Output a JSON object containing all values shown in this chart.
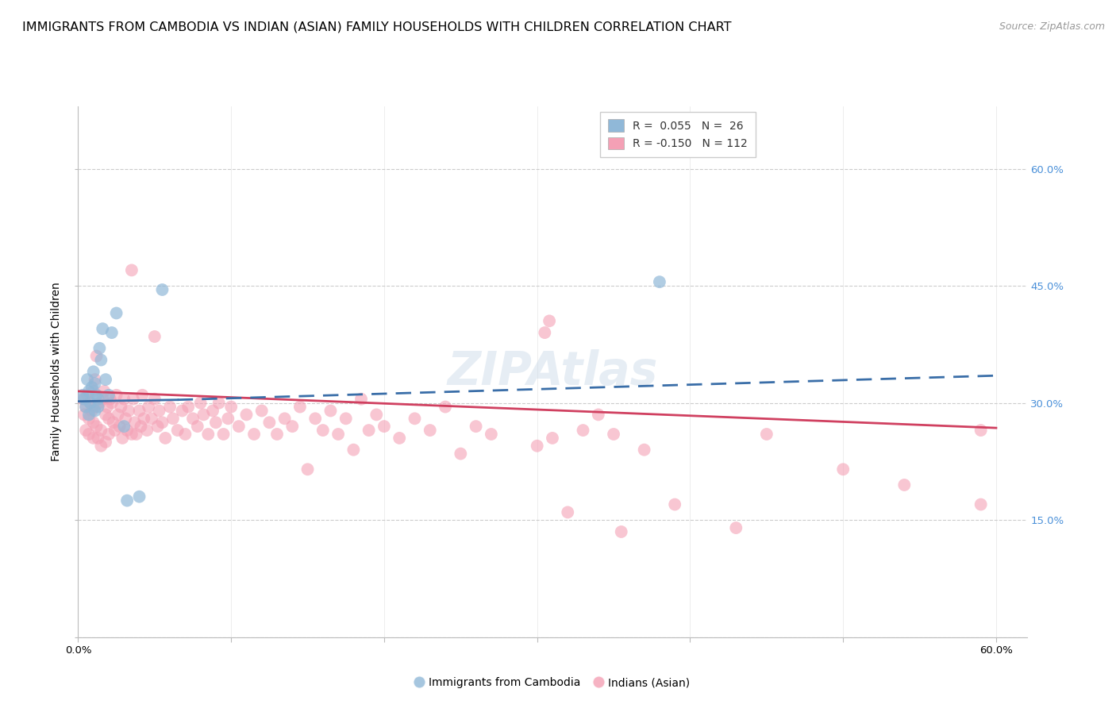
{
  "title": "IMMIGRANTS FROM CAMBODIA VS INDIAN (ASIAN) FAMILY HOUSEHOLDS WITH CHILDREN CORRELATION CHART",
  "source": "Source: ZipAtlas.com",
  "ylabel": "Family Households with Children",
  "ytick_vals": [
    0.0,
    0.15,
    0.3,
    0.45,
    0.6
  ],
  "xtick_vals": [
    0.0,
    0.1,
    0.2,
    0.3,
    0.4,
    0.5,
    0.6
  ],
  "xlim": [
    0.0,
    0.62
  ],
  "ylim": [
    0.0,
    0.68
  ],
  "blue_scatter": [
    [
      0.003,
      0.31
    ],
    [
      0.004,
      0.305
    ],
    [
      0.005,
      0.295
    ],
    [
      0.006,
      0.33
    ],
    [
      0.007,
      0.315
    ],
    [
      0.007,
      0.285
    ],
    [
      0.008,
      0.3
    ],
    [
      0.009,
      0.32
    ],
    [
      0.01,
      0.34
    ],
    [
      0.011,
      0.29
    ],
    [
      0.011,
      0.325
    ],
    [
      0.012,
      0.31
    ],
    [
      0.013,
      0.295
    ],
    [
      0.013,
      0.305
    ],
    [
      0.014,
      0.37
    ],
    [
      0.015,
      0.355
    ],
    [
      0.016,
      0.395
    ],
    [
      0.018,
      0.33
    ],
    [
      0.02,
      0.31
    ],
    [
      0.022,
      0.39
    ],
    [
      0.025,
      0.415
    ],
    [
      0.03,
      0.27
    ],
    [
      0.032,
      0.175
    ],
    [
      0.04,
      0.18
    ],
    [
      0.055,
      0.445
    ],
    [
      0.38,
      0.455
    ]
  ],
  "pink_scatter": [
    [
      0.003,
      0.305
    ],
    [
      0.004,
      0.285
    ],
    [
      0.005,
      0.295
    ],
    [
      0.005,
      0.265
    ],
    [
      0.006,
      0.31
    ],
    [
      0.007,
      0.28
    ],
    [
      0.007,
      0.26
    ],
    [
      0.008,
      0.3
    ],
    [
      0.009,
      0.29
    ],
    [
      0.01,
      0.315
    ],
    [
      0.01,
      0.275
    ],
    [
      0.01,
      0.255
    ],
    [
      0.011,
      0.295
    ],
    [
      0.011,
      0.33
    ],
    [
      0.012,
      0.36
    ],
    [
      0.012,
      0.27
    ],
    [
      0.013,
      0.255
    ],
    [
      0.014,
      0.3
    ],
    [
      0.015,
      0.265
    ],
    [
      0.015,
      0.245
    ],
    [
      0.016,
      0.305
    ],
    [
      0.017,
      0.315
    ],
    [
      0.018,
      0.285
    ],
    [
      0.018,
      0.25
    ],
    [
      0.019,
      0.295
    ],
    [
      0.02,
      0.28
    ],
    [
      0.02,
      0.26
    ],
    [
      0.021,
      0.305
    ],
    [
      0.022,
      0.3
    ],
    [
      0.023,
      0.275
    ],
    [
      0.024,
      0.265
    ],
    [
      0.025,
      0.31
    ],
    [
      0.026,
      0.285
    ],
    [
      0.027,
      0.27
    ],
    [
      0.028,
      0.295
    ],
    [
      0.029,
      0.255
    ],
    [
      0.03,
      0.305
    ],
    [
      0.031,
      0.28
    ],
    [
      0.032,
      0.265
    ],
    [
      0.033,
      0.29
    ],
    [
      0.035,
      0.26
    ],
    [
      0.035,
      0.47
    ],
    [
      0.036,
      0.305
    ],
    [
      0.037,
      0.275
    ],
    [
      0.038,
      0.26
    ],
    [
      0.04,
      0.29
    ],
    [
      0.041,
      0.27
    ],
    [
      0.042,
      0.31
    ],
    [
      0.043,
      0.28
    ],
    [
      0.045,
      0.265
    ],
    [
      0.046,
      0.295
    ],
    [
      0.048,
      0.28
    ],
    [
      0.05,
      0.305
    ],
    [
      0.05,
      0.385
    ],
    [
      0.052,
      0.27
    ],
    [
      0.053,
      0.29
    ],
    [
      0.055,
      0.275
    ],
    [
      0.057,
      0.255
    ],
    [
      0.06,
      0.295
    ],
    [
      0.062,
      0.28
    ],
    [
      0.065,
      0.265
    ],
    [
      0.068,
      0.29
    ],
    [
      0.07,
      0.26
    ],
    [
      0.072,
      0.295
    ],
    [
      0.075,
      0.28
    ],
    [
      0.078,
      0.27
    ],
    [
      0.08,
      0.3
    ],
    [
      0.082,
      0.285
    ],
    [
      0.085,
      0.26
    ],
    [
      0.088,
      0.29
    ],
    [
      0.09,
      0.275
    ],
    [
      0.092,
      0.3
    ],
    [
      0.095,
      0.26
    ],
    [
      0.098,
      0.28
    ],
    [
      0.1,
      0.295
    ],
    [
      0.105,
      0.27
    ],
    [
      0.11,
      0.285
    ],
    [
      0.115,
      0.26
    ],
    [
      0.12,
      0.29
    ],
    [
      0.125,
      0.275
    ],
    [
      0.13,
      0.26
    ],
    [
      0.135,
      0.28
    ],
    [
      0.14,
      0.27
    ],
    [
      0.145,
      0.295
    ],
    [
      0.15,
      0.215
    ],
    [
      0.155,
      0.28
    ],
    [
      0.16,
      0.265
    ],
    [
      0.165,
      0.29
    ],
    [
      0.17,
      0.26
    ],
    [
      0.175,
      0.28
    ],
    [
      0.18,
      0.24
    ],
    [
      0.185,
      0.305
    ],
    [
      0.19,
      0.265
    ],
    [
      0.195,
      0.285
    ],
    [
      0.2,
      0.27
    ],
    [
      0.21,
      0.255
    ],
    [
      0.22,
      0.28
    ],
    [
      0.23,
      0.265
    ],
    [
      0.24,
      0.295
    ],
    [
      0.25,
      0.235
    ],
    [
      0.26,
      0.27
    ],
    [
      0.27,
      0.26
    ],
    [
      0.3,
      0.245
    ],
    [
      0.305,
      0.39
    ],
    [
      0.308,
      0.405
    ],
    [
      0.31,
      0.255
    ],
    [
      0.32,
      0.16
    ],
    [
      0.33,
      0.265
    ],
    [
      0.34,
      0.285
    ],
    [
      0.35,
      0.26
    ],
    [
      0.355,
      0.135
    ],
    [
      0.37,
      0.24
    ],
    [
      0.39,
      0.17
    ],
    [
      0.43,
      0.14
    ],
    [
      0.45,
      0.26
    ],
    [
      0.5,
      0.215
    ],
    [
      0.54,
      0.195
    ],
    [
      0.59,
      0.265
    ],
    [
      0.59,
      0.17
    ]
  ],
  "blue_line_solid": {
    "x0": 0.0,
    "x1": 0.065,
    "y0": 0.302,
    "y1": 0.304
  },
  "blue_line_dashed": {
    "x0": 0.065,
    "x1": 0.6,
    "y0": 0.304,
    "y1": 0.335
  },
  "pink_line": {
    "x0": 0.0,
    "x1": 0.6,
    "y0": 0.315,
    "y1": 0.268
  },
  "blue_color": "#90b8d8",
  "pink_color": "#f4a0b5",
  "blue_line_color": "#3a6ea8",
  "pink_line_color": "#d04060",
  "background_color": "#ffffff",
  "grid_color": "#cccccc",
  "right_axis_color": "#4a90d9",
  "title_fontsize": 11.5,
  "axis_label_fontsize": 10,
  "tick_fontsize": 9.5,
  "source_fontsize": 9
}
